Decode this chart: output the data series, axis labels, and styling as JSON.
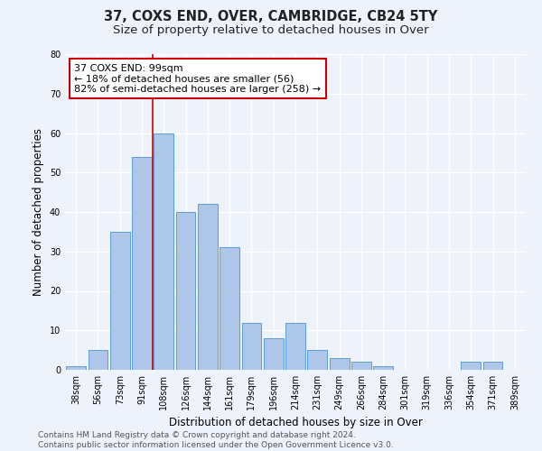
{
  "title": "37, COXS END, OVER, CAMBRIDGE, CB24 5TY",
  "subtitle": "Size of property relative to detached houses in Over",
  "xlabel": "Distribution of detached houses by size in Over",
  "ylabel": "Number of detached properties",
  "categories": [
    "38sqm",
    "56sqm",
    "73sqm",
    "91sqm",
    "108sqm",
    "126sqm",
    "144sqm",
    "161sqm",
    "179sqm",
    "196sqm",
    "214sqm",
    "231sqm",
    "249sqm",
    "266sqm",
    "284sqm",
    "301sqm",
    "319sqm",
    "336sqm",
    "354sqm",
    "371sqm",
    "389sqm"
  ],
  "values": [
    1,
    5,
    35,
    54,
    60,
    40,
    42,
    31,
    12,
    8,
    12,
    5,
    3,
    2,
    1,
    0,
    0,
    0,
    2,
    2,
    0
  ],
  "bar_color": "#aec6e8",
  "bar_edge_color": "#5a9fd4",
  "highlight_line_index": 3,
  "annotation_line1": "37 COXS END: 99sqm",
  "annotation_line2": "← 18% of detached houses are smaller (56)",
  "annotation_line3": "82% of semi-detached houses are larger (258) →",
  "annotation_box_color": "#ffffff",
  "annotation_box_edge_color": "#cc0000",
  "ylim": [
    0,
    80
  ],
  "yticks": [
    0,
    10,
    20,
    30,
    40,
    50,
    60,
    70,
    80
  ],
  "background_color": "#eef2fb",
  "grid_color": "#ffffff",
  "footer_text": "Contains HM Land Registry data © Crown copyright and database right 2024.\nContains public sector information licensed under the Open Government Licence v3.0.",
  "title_fontsize": 10.5,
  "subtitle_fontsize": 9.5,
  "xlabel_fontsize": 8.5,
  "ylabel_fontsize": 8.5,
  "tick_fontsize": 7,
  "annotation_fontsize": 8,
  "footer_fontsize": 6.5
}
